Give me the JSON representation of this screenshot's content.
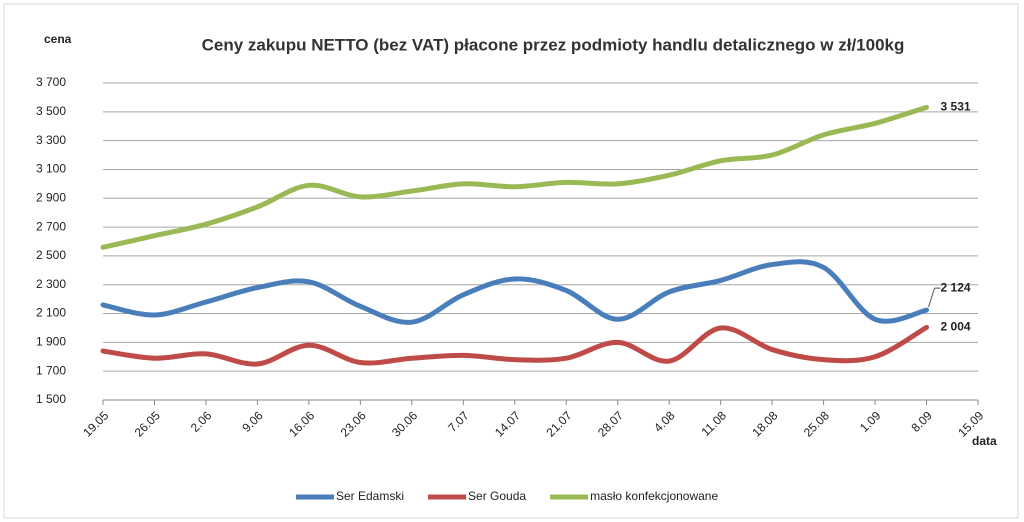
{
  "chart_data": {
    "type": "line",
    "title": "Ceny zakupu NETTO (bez VAT) płacone przez podmioty handlu detalicznego w zł/100kg",
    "y_label": "cena",
    "x_label": "data",
    "categories": [
      "19.05",
      "26.05",
      "2.06",
      "9.06",
      "16.06",
      "23.06",
      "30.06",
      "7.07",
      "14.07",
      "21.07",
      "28.07",
      "4.08",
      "11.08",
      "18.08",
      "25.08",
      "1.09",
      "8.09",
      "15.09"
    ],
    "series": [
      {
        "name": "Ser Edamski",
        "color": "#4a7ebb",
        "values": [
          2160,
          2090,
          2180,
          2280,
          2320,
          2150,
          2040,
          2230,
          2340,
          2260,
          2060,
          2250,
          2330,
          2440,
          2420,
          2060,
          2124,
          null
        ],
        "value_labels": [
          null,
          null,
          null,
          null,
          null,
          null,
          null,
          null,
          null,
          null,
          null,
          null,
          null,
          null,
          null,
          null,
          "2 124",
          null
        ]
      },
      {
        "name": "Ser Gouda",
        "color": "#be4b48",
        "values": [
          1840,
          1790,
          1820,
          1750,
          1880,
          1760,
          1790,
          1810,
          1780,
          1790,
          1900,
          1770,
          2000,
          1850,
          1780,
          1800,
          2004,
          null
        ],
        "value_labels": [
          null,
          null,
          null,
          null,
          null,
          null,
          null,
          null,
          null,
          null,
          null,
          null,
          null,
          null,
          null,
          null,
          "2 004",
          null
        ]
      },
      {
        "name": "masło konfekcjonowane",
        "color": "#98b954",
        "values": [
          2560,
          2640,
          2720,
          2840,
          2990,
          2910,
          2950,
          3000,
          2980,
          3010,
          3000,
          3060,
          3160,
          3200,
          3340,
          3420,
          3531,
          null
        ],
        "value_labels": [
          null,
          null,
          null,
          null,
          null,
          null,
          null,
          null,
          null,
          null,
          null,
          null,
          null,
          null,
          null,
          null,
          "3 531",
          null
        ]
      }
    ],
    "ylim": [
      1500,
      3700
    ],
    "yticks": [
      {
        "value": 1500,
        "label": "1 500"
      },
      {
        "value": 1700,
        "label": "1 700"
      },
      {
        "value": 1900,
        "label": "1 900"
      },
      {
        "value": 2100,
        "label": "2 100"
      },
      {
        "value": 2300,
        "label": "2 300"
      },
      {
        "value": 2500,
        "label": "2 500"
      },
      {
        "value": 2700,
        "label": "2 700"
      },
      {
        "value": 2900,
        "label": "2 900"
      },
      {
        "value": 3100,
        "label": "3 100"
      },
      {
        "value": 3300,
        "label": "3 300"
      },
      {
        "value": 3500,
        "label": "3 500"
      },
      {
        "value": 3700,
        "label": "3 700"
      }
    ],
    "grid": true,
    "legend": "bottom",
    "smooth": true
  }
}
